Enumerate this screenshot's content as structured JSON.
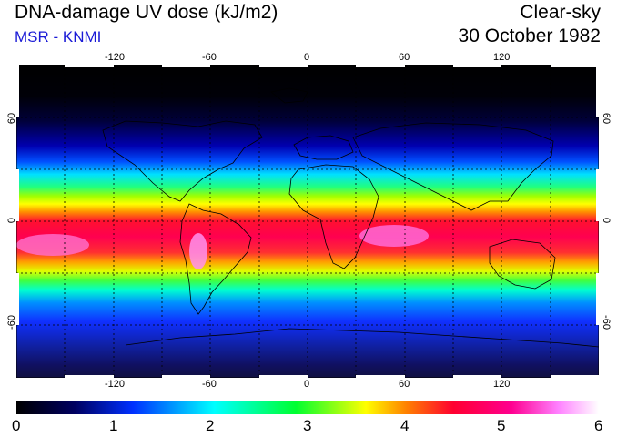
{
  "header": {
    "title": "DNA-damage UV dose (kJ/m2)",
    "subtitle": "MSR - KNMI",
    "product": "Clear-sky",
    "date": "30 October 1982"
  },
  "map": {
    "projection": "equirectangular",
    "lon_ticks": [
      "-120",
      "-60",
      "0",
      "60",
      "120"
    ],
    "lat_ticks_left": [
      "60",
      "0",
      "-60"
    ],
    "lat_ticks_right": [
      "60",
      "0",
      "-60"
    ],
    "gridlines": "dotted"
  },
  "colorbar": {
    "labels": [
      "0",
      "1",
      "2",
      "3",
      "4",
      "5",
      "6"
    ],
    "colors": [
      "#000000",
      "#000060",
      "#0020ff",
      "#00ffff",
      "#00ff40",
      "#ffff00",
      "#ff8000",
      "#ff0040",
      "#ff0090",
      "#ff80ff",
      "#ffffff"
    ]
  }
}
